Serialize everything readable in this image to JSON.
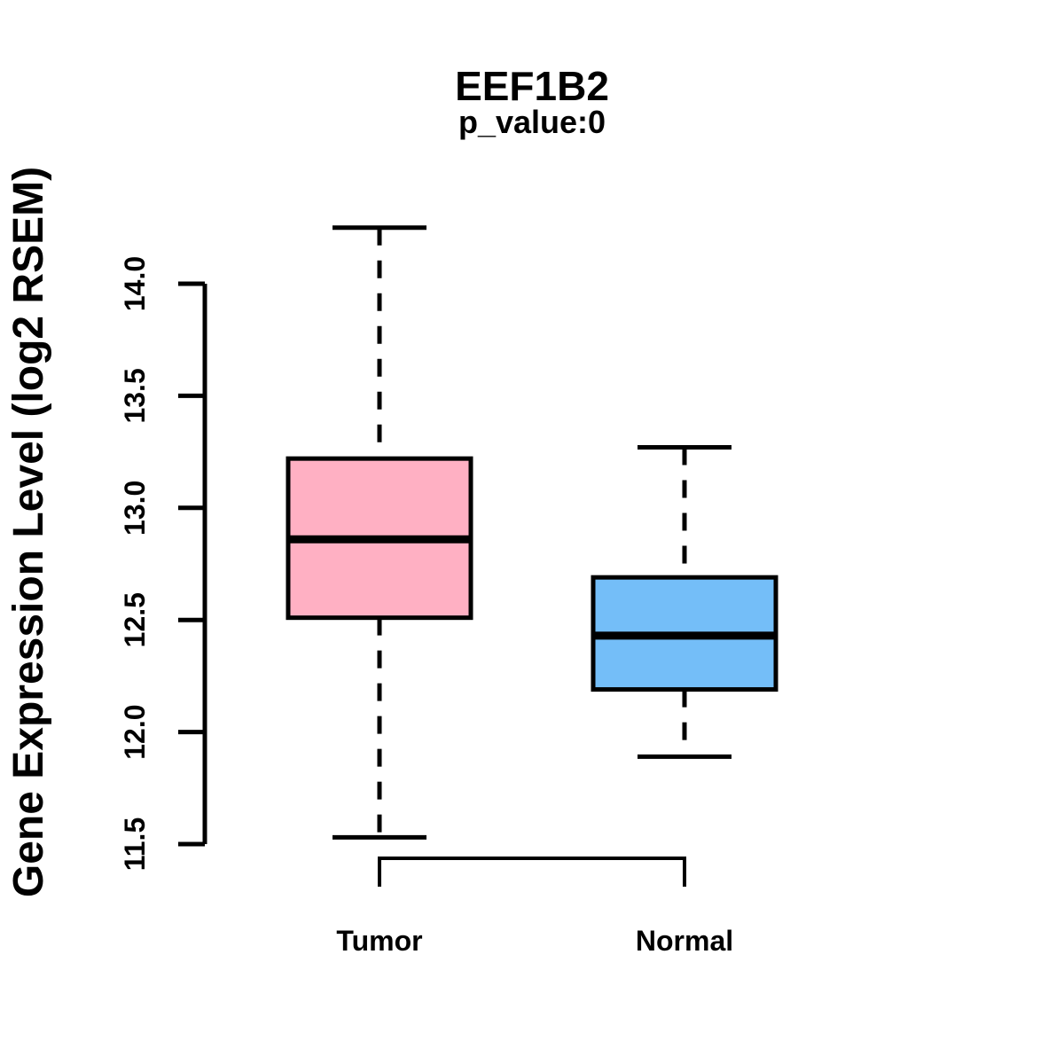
{
  "chart_data": {
    "type": "boxplot",
    "title": "EEF1B2",
    "subtitle": "p_value:0",
    "ylabel": "Gene Expression Level (log2 RSEM)",
    "xlabel": "",
    "categories": [
      "Tumor",
      "Normal"
    ],
    "series": [
      {
        "name": "Tumor",
        "color": "#FFB0C3",
        "whisker_low": 11.53,
        "q1": 12.51,
        "median": 12.86,
        "q3": 13.22,
        "whisker_high": 14.25,
        "outliers": []
      },
      {
        "name": "Normal",
        "color": "#74BEF8",
        "whisker_low": 11.89,
        "q1": 12.19,
        "median": 12.43,
        "q3": 12.69,
        "whisker_high": 13.27,
        "outliers": []
      }
    ],
    "yticks": [
      11.5,
      12.0,
      12.5,
      13.0,
      13.5,
      14.0
    ],
    "ylim": [
      11.4,
      14.3
    ],
    "grid": false,
    "legend": "none",
    "axis_color": "#000000",
    "median_color": "#000000",
    "background": "#FFFFFF",
    "comparison_bracket": {
      "connects": [
        "Tumor",
        "Normal"
      ]
    }
  }
}
